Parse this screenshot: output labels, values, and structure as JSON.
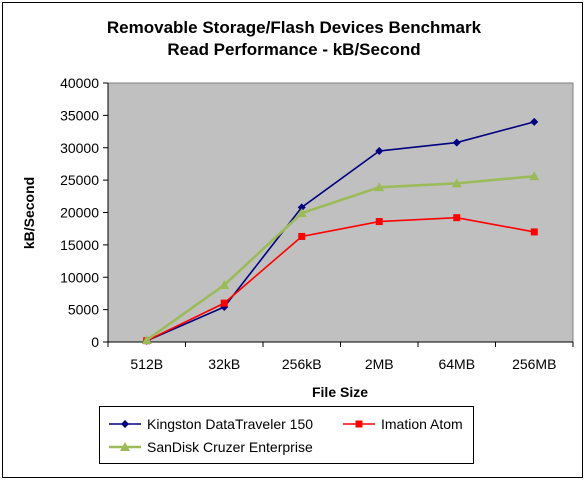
{
  "chart_data": {
    "type": "line",
    "title": [
      "Removable Storage/Flash Devices Benchmark",
      "Read Performance - kB/Second"
    ],
    "xlabel": "File Size",
    "ylabel": "kB/Second",
    "categories": [
      "512B",
      "32kB",
      "256kB",
      "2MB",
      "64MB",
      "256MB"
    ],
    "ylim": [
      0,
      40000
    ],
    "yticks": [
      "0",
      "5000",
      "10000",
      "15000",
      "20000",
      "25000",
      "30000",
      "35000",
      "40000"
    ],
    "grid": false,
    "plot_background": "#c0c0c0",
    "legend_position": "bottom",
    "series": [
      {
        "name": "Kingston DataTraveler 150",
        "color": "#000080",
        "marker": "diamond",
        "values": [
          200,
          5400,
          20800,
          29500,
          30800,
          34000
        ]
      },
      {
        "name": "Imation Atom",
        "color": "#ff0000",
        "marker": "square",
        "values": [
          200,
          6000,
          16300,
          18600,
          19200,
          17000
        ]
      },
      {
        "name": "SanDisk Cruzer Enterprise",
        "color": "#9bbb59",
        "marker": "triangle",
        "values": [
          300,
          8800,
          19900,
          23900,
          24500,
          25600
        ]
      }
    ]
  }
}
